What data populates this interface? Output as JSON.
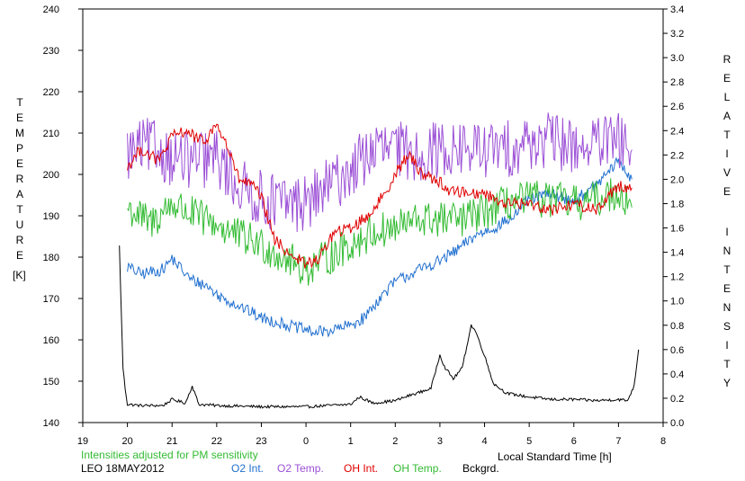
{
  "chart_data": {
    "type": "line",
    "left_axis_label": "TEMPERATURE",
    "left_axis_unit": "[K]",
    "right_axis_label": "RELATIVE INTENSITY",
    "xlabel": "Local Standard Time [h]",
    "note": "Intensities adjusted for PM sensitivity",
    "station_date": "LEO 18MAY2012",
    "xlim": [
      19,
      32
    ],
    "ylim_left": [
      140,
      240
    ],
    "ylim_right": [
      0.0,
      3.4
    ],
    "x_tick_values": [
      19,
      20,
      21,
      22,
      23,
      24,
      25,
      26,
      27,
      28,
      29,
      30,
      31,
      32
    ],
    "x_tick_labels": [
      "19",
      "20",
      "21",
      "22",
      "23",
      "0",
      "1",
      "2",
      "3",
      "4",
      "5",
      "6",
      "7",
      "8"
    ],
    "y_left_ticks": [
      "140",
      "150",
      "160",
      "170",
      "180",
      "190",
      "200",
      "210",
      "220",
      "230",
      "240"
    ],
    "y_right_ticks": [
      "0.0",
      "0.2",
      "0.4",
      "0.6",
      "0.8",
      "1.0",
      "1.2",
      "1.4",
      "1.6",
      "1.8",
      "2.0",
      "2.2",
      "2.4",
      "2.6",
      "2.8",
      "3.0",
      "3.2",
      "3.4"
    ],
    "grid": false,
    "legend_placement": "bottom",
    "series": [
      {
        "name": "O2 Int.",
        "color": "#1f6fcf",
        "axis": "right",
        "x": [
          20.0,
          20.3,
          20.8,
          21.0,
          21.4,
          21.8,
          22.0,
          22.5,
          23.0,
          23.4,
          23.8,
          24.2,
          24.6,
          25.0,
          25.3,
          25.6,
          26.0,
          26.5,
          27.0,
          27.4,
          27.8,
          28.2,
          28.6,
          29.0,
          29.5,
          30.0,
          30.5,
          31.0,
          31.3
        ],
        "values": [
          1.28,
          1.22,
          1.26,
          1.35,
          1.18,
          1.12,
          1.05,
          0.96,
          0.86,
          0.82,
          0.78,
          0.74,
          0.76,
          0.8,
          0.86,
          1.0,
          1.16,
          1.25,
          1.33,
          1.42,
          1.54,
          1.6,
          1.68,
          1.84,
          1.88,
          1.82,
          1.95,
          2.15,
          2.0
        ]
      },
      {
        "name": "O2 Temp.",
        "color": "#9b4fd6",
        "axis": "left",
        "x": [
          20.0,
          20.5,
          21.0,
          21.5,
          22.0,
          22.5,
          23.0,
          23.5,
          24.0,
          24.5,
          25.0,
          25.5,
          26.0,
          26.5,
          27.0,
          27.5,
          28.0,
          28.5,
          29.0,
          29.5,
          30.0,
          30.5,
          31.0,
          31.3
        ],
        "values": [
          205,
          207,
          204,
          203,
          204,
          197,
          194,
          193,
          193,
          197,
          201,
          206,
          206,
          205,
          206,
          206,
          206,
          206,
          208,
          208,
          207,
          207,
          208,
          206
        ]
      },
      {
        "name": "OH Int.",
        "color": "#e00000",
        "axis": "right",
        "x": [
          20.0,
          20.3,
          20.7,
          21.0,
          21.3,
          21.7,
          22.0,
          22.2,
          22.5,
          22.8,
          23.0,
          23.3,
          23.6,
          24.0,
          24.3,
          24.6,
          25.0,
          25.4,
          25.8,
          26.0,
          26.3,
          26.6,
          27.0,
          27.2,
          27.4,
          28.0,
          28.5,
          29.0,
          29.5,
          30.0,
          30.5,
          31.0,
          31.3
        ],
        "values": [
          2.1,
          2.25,
          2.15,
          2.35,
          2.4,
          2.3,
          2.45,
          2.3,
          2.0,
          1.95,
          1.85,
          1.5,
          1.4,
          1.3,
          1.35,
          1.55,
          1.6,
          1.7,
          1.9,
          2.05,
          2.2,
          2.05,
          1.98,
          1.9,
          1.9,
          1.88,
          1.8,
          1.8,
          1.75,
          1.8,
          1.75,
          1.95,
          1.93
        ]
      },
      {
        "name": "OH Temp.",
        "color": "#33bb33",
        "axis": "left",
        "x": [
          20.0,
          20.5,
          21.0,
          21.5,
          22.0,
          22.5,
          23.0,
          23.5,
          24.0,
          24.5,
          25.0,
          25.5,
          26.0,
          26.5,
          27.0,
          27.5,
          28.0,
          28.5,
          29.0,
          29.5,
          30.0,
          30.5,
          31.0,
          31.3
        ],
        "values": [
          192,
          188,
          193,
          190,
          188,
          185,
          183,
          180,
          177,
          180,
          183,
          186,
          187,
          189,
          189,
          189,
          191,
          193,
          194,
          194,
          193,
          194,
          196,
          192
        ]
      },
      {
        "name": "Bckgrd.",
        "color": "#000000",
        "axis": "right",
        "x": [
          19.82,
          19.9,
          19.95,
          20.0,
          20.3,
          20.8,
          21.0,
          21.3,
          21.45,
          21.6,
          22.0,
          23.0,
          24.0,
          24.5,
          25.0,
          25.2,
          25.5,
          26.0,
          26.3,
          26.8,
          27.0,
          27.1,
          27.3,
          27.5,
          27.7,
          27.8,
          28.0,
          28.2,
          28.5,
          29.0,
          29.5,
          30.0,
          30.5,
          31.0,
          31.2,
          31.35,
          31.45
        ],
        "values": [
          1.45,
          0.45,
          0.28,
          0.15,
          0.14,
          0.14,
          0.19,
          0.16,
          0.3,
          0.15,
          0.14,
          0.13,
          0.13,
          0.14,
          0.15,
          0.21,
          0.16,
          0.18,
          0.22,
          0.28,
          0.56,
          0.46,
          0.36,
          0.45,
          0.8,
          0.75,
          0.55,
          0.32,
          0.24,
          0.21,
          0.19,
          0.19,
          0.18,
          0.19,
          0.18,
          0.3,
          0.6
        ]
      }
    ]
  }
}
